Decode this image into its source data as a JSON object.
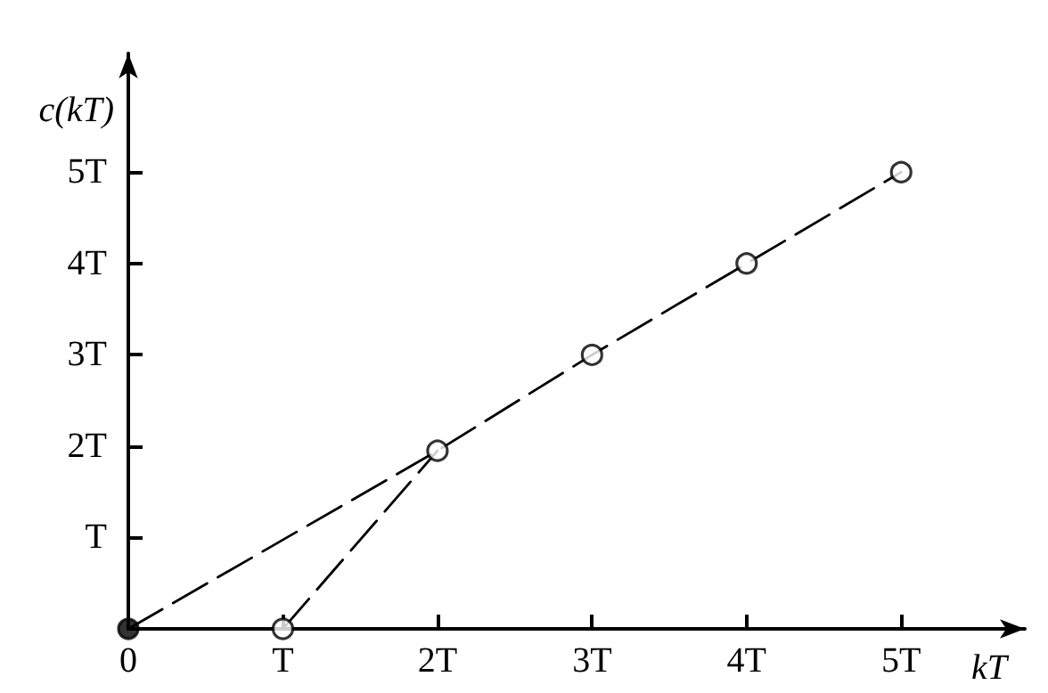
{
  "chart_data": {
    "type": "line",
    "xlabel": "kT",
    "ylabel": "c(kT)",
    "xlim": [
      0,
      5.8
    ],
    "ylim": [
      0,
      6.3
    ],
    "xticks": [
      {
        "value": 0,
        "label": "0"
      },
      {
        "value": 1,
        "label": "T"
      },
      {
        "value": 2,
        "label": "2T"
      },
      {
        "value": 3,
        "label": "3T"
      },
      {
        "value": 4,
        "label": "4T"
      },
      {
        "value": 5,
        "label": "5T"
      }
    ],
    "yticks": [
      {
        "value": 1,
        "label": "T"
      },
      {
        "value": 2,
        "label": "2T"
      },
      {
        "value": 3,
        "label": "3T"
      },
      {
        "value": 4,
        "label": "4T"
      },
      {
        "value": 5,
        "label": "5T"
      }
    ],
    "grid": false,
    "series": [
      {
        "color": "#000000",
        "line_style": "dashed",
        "marker": "none",
        "x": [
          0,
          2,
          3,
          4,
          5
        ],
        "values": [
          0,
          1.95,
          3,
          4,
          5
        ]
      },
      {
        "color": "#000000",
        "line_style": "dashed",
        "marker": "none",
        "x": [
          0,
          1,
          2
        ],
        "values": [
          0,
          0,
          1.95
        ]
      },
      {
        "type": "scatter",
        "color": "#000000",
        "marker": "circle",
        "x": [
          0,
          1,
          2,
          3,
          4,
          5
        ],
        "values": [
          0,
          0,
          1.95,
          3,
          4,
          5
        ],
        "colors": [
          "#000000",
          "#ffffff",
          "#ffffff",
          "#ffffff",
          "#ffffff",
          "#ffffff"
        ]
      }
    ]
  }
}
